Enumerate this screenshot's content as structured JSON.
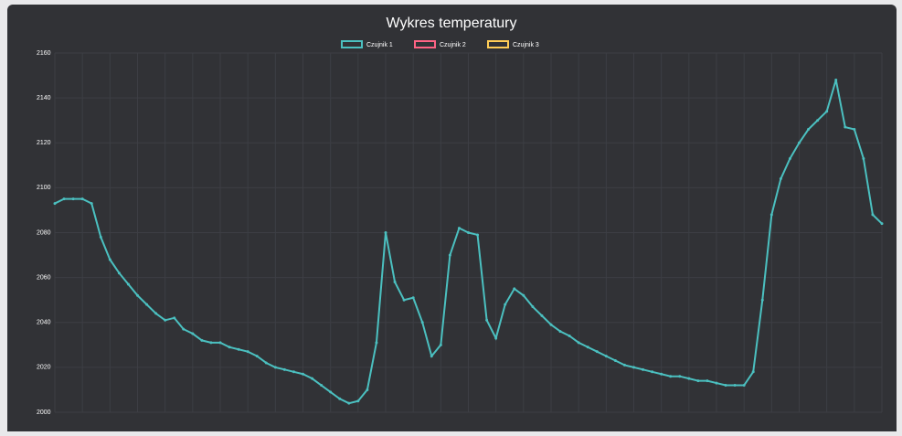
{
  "chart_data": {
    "type": "line",
    "title": "Wykres temperatury",
    "categories": [
      null,
      null,
      null,
      null,
      null,
      null,
      null,
      null,
      null,
      null,
      null,
      null,
      null,
      null,
      null,
      null,
      null,
      null,
      null,
      null,
      null,
      null,
      null,
      null,
      null,
      null,
      null,
      null,
      null,
      null,
      null,
      null,
      null,
      null,
      null,
      null,
      null,
      null,
      null,
      null,
      null,
      null,
      null,
      null,
      null,
      null,
      null,
      null,
      null,
      null,
      null,
      null,
      null,
      null,
      null,
      null,
      null,
      null,
      null,
      null,
      null,
      null,
      null,
      null,
      null,
      null,
      null,
      null,
      null,
      null,
      null,
      null,
      null,
      null,
      null,
      null,
      null,
      null,
      null,
      null,
      null,
      null,
      null,
      null,
      null,
      null,
      null,
      null,
      null,
      null,
      null
    ],
    "series": [
      {
        "name": "Czujnik 1",
        "color": "#4bc0c0",
        "values": [
          2093,
          2095,
          2095,
          2095,
          2093,
          2078,
          2068,
          2062,
          2057,
          2052,
          2048,
          2044,
          2041,
          2042,
          2037,
          2035,
          2032,
          2031,
          2031,
          2029,
          2028,
          2027,
          2025,
          2022,
          2020,
          2019,
          2018,
          2017,
          2015,
          2012,
          2009,
          2006,
          2004,
          2005,
          2010,
          2031,
          2080,
          2058,
          2050,
          2051,
          2040,
          2025,
          2030,
          2070,
          2082,
          2080,
          2079,
          2041,
          2033,
          2048,
          2055,
          2052,
          2047,
          2043,
          2039,
          2036,
          2034,
          2031,
          2029,
          2027,
          2025,
          2023,
          2021,
          2020,
          2019,
          2018,
          2017,
          2016,
          2016,
          2015,
          2014,
          2014,
          2013,
          2012,
          2012,
          2012,
          2018,
          2050,
          2088,
          2104,
          2113,
          2120,
          2126,
          2130,
          2134,
          2148,
          2127,
          2126,
          2113,
          2088,
          2084
        ]
      },
      {
        "name": "Czujnik 2",
        "color": "#ff6384",
        "values": [
          null,
          null,
          null,
          null,
          null,
          null,
          null,
          null,
          null,
          null,
          null,
          null,
          null,
          null,
          null,
          null,
          null,
          null,
          null,
          null,
          null,
          null,
          null,
          null,
          null,
          null,
          null,
          null,
          null,
          null,
          null,
          null,
          null,
          null,
          null,
          null,
          null,
          null,
          null,
          null,
          null,
          null,
          null,
          null,
          null,
          null,
          null,
          null,
          null,
          null,
          null,
          null,
          null,
          null,
          null,
          null,
          null,
          null,
          null,
          null,
          null,
          null,
          null,
          null,
          null,
          null,
          null,
          null,
          null,
          null,
          null,
          null,
          null,
          null,
          null,
          null,
          null,
          null,
          null,
          null,
          null,
          null,
          null,
          null,
          null,
          null,
          null,
          null,
          null,
          null,
          null
        ]
      },
      {
        "name": "Czujnik 3",
        "color": "#ffcd56",
        "values": [
          null,
          null,
          null,
          null,
          null,
          null,
          null,
          null,
          null,
          null,
          null,
          null,
          null,
          null,
          null,
          null,
          null,
          null,
          null,
          null,
          null,
          null,
          null,
          null,
          null,
          null,
          null,
          null,
          null,
          null,
          null,
          null,
          null,
          null,
          null,
          null,
          null,
          null,
          null,
          null,
          null,
          null,
          null,
          null,
          null,
          null,
          null,
          null,
          null,
          null,
          null,
          null,
          null,
          null,
          null,
          null,
          null,
          null,
          null,
          null,
          null,
          null,
          null,
          null,
          null,
          null,
          null,
          null,
          null,
          null,
          null,
          null,
          null,
          null,
          null,
          null,
          null,
          null,
          null,
          null,
          null,
          null,
          null,
          null,
          null,
          null,
          null,
          null,
          null,
          null,
          null
        ]
      }
    ],
    "ylim": [
      2000,
      2160
    ],
    "yticks": [
      2000,
      2020,
      2040,
      2060,
      2080,
      2100,
      2120,
      2140,
      2160
    ],
    "grid": true
  }
}
